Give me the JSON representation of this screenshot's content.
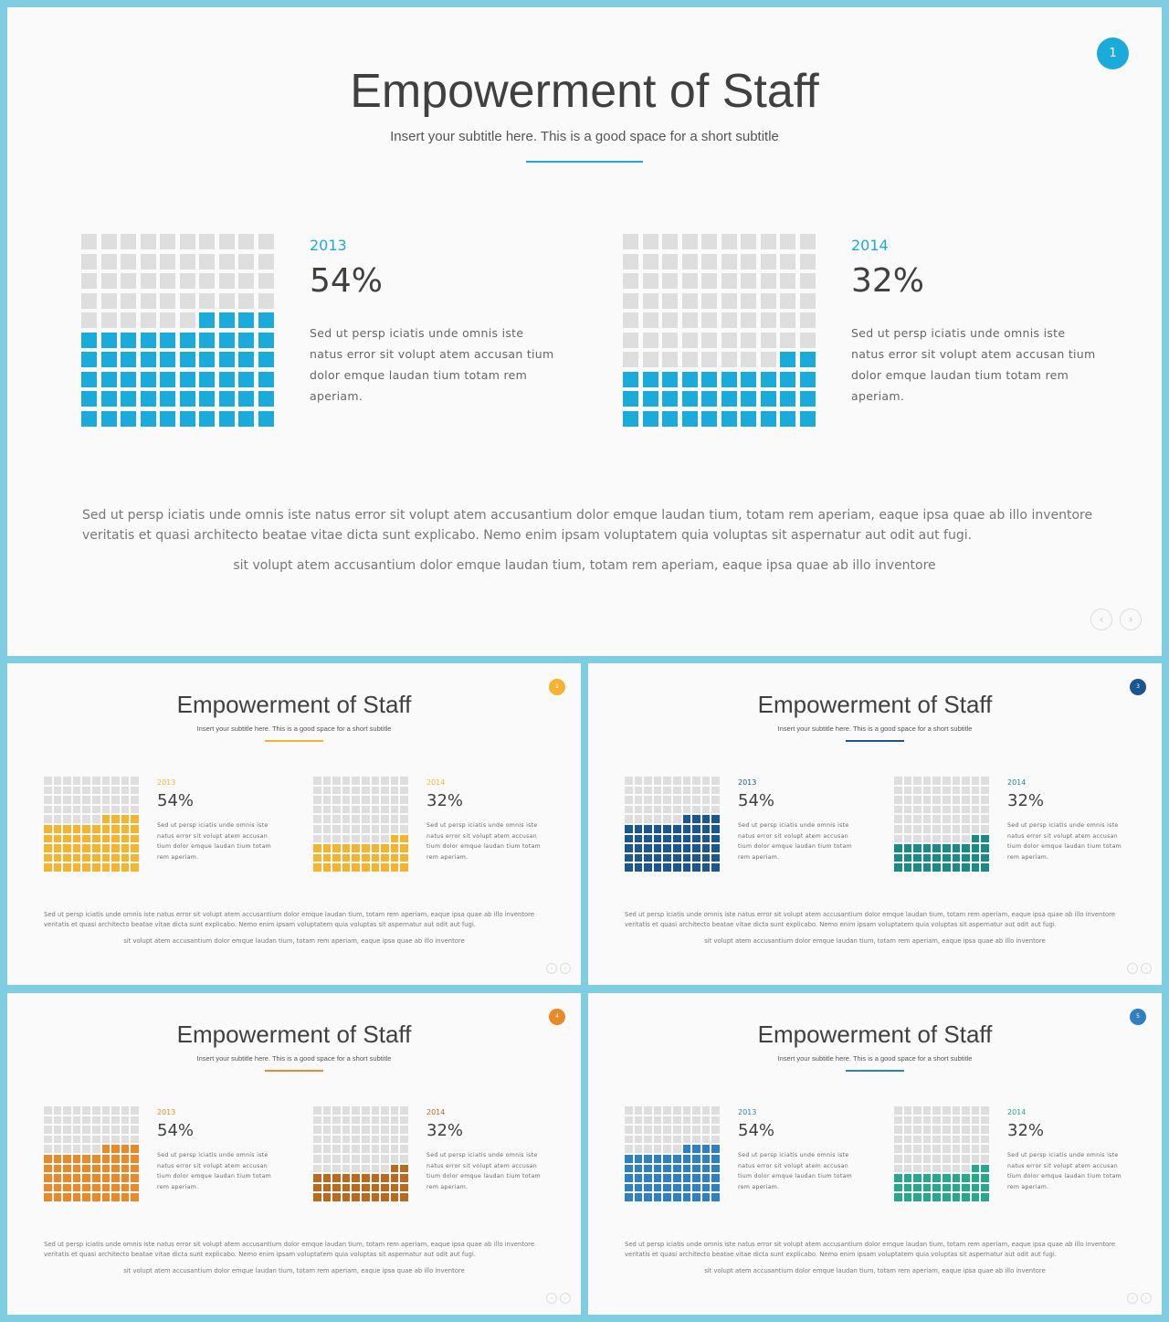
{
  "slides": [
    {
      "id": "main",
      "title": "Empowerment of Staff",
      "subtitle": "Insert your subtitle here. This is a good space for a short subtitle",
      "page_number": "1",
      "accent": "#1aabdb",
      "accent2": "#1aabdb",
      "left": {
        "year": "2013",
        "percent_label": "54%",
        "filled": 54,
        "description": "Sed ut persp iciatis unde omnis iste natus error sit volupt atem accusan tium dolor emque laudan tium totam rem aperiam."
      },
      "right": {
        "year": "2014",
        "percent_label": "32%",
        "filled": 32,
        "description": "Sed ut persp iciatis unde omnis iste natus error sit volupt atem accusan tium dolor emque laudan tium totam rem aperiam."
      },
      "body_text": "Sed ut persp iciatis unde omnis iste natus error sit volupt atem accusantium dolor emque laudan tium, totam rem aperiam, eaque ipsa quae ab illo inventore veritatis et quasi architecto beatae vitae dicta sunt explicabo. Nemo enim ipsam voluptatem quia voluptas sit aspernatur aut odit aut fugi.",
      "body_text_2": "sit volupt atem accusantium dolor emque laudan tium, totam rem aperiam, eaque ipsa quae ab illo inventore",
      "nav": {
        "prev": "‹",
        "next": "›"
      }
    },
    {
      "id": "tl",
      "title": "Empowerment of Staff",
      "subtitle": "Insert your subtitle here. This is a good space for a short subtitle",
      "page_number": "2",
      "accent": "#f3b530",
      "accent2": "#f3b530",
      "left": {
        "year": "2013",
        "percent_label": "54%",
        "filled": 54,
        "description": "Sed ut persp iciatis unde omnis iste natus error sit volupt atem accusan tium dolor emque laudan tium totam rem aperiam."
      },
      "right": {
        "year": "2014",
        "percent_label": "32%",
        "filled": 32,
        "description": "Sed ut persp iciatis unde omnis iste natus error sit volupt atem accusan tium dolor emque laudan tium totam rem aperiam."
      },
      "body_text": "Sed ut persp iciatis unde omnis iste natus error sit volupt atem accusantium dolor emque laudan tium, totam rem aperiam, eaque ipsa quae ab illo inventore veritatis et quasi architecto beatae vitae dicta sunt explicabo. Nemo enim ipsam voluptatem quia voluptas sit aspernatur aut odit aut fugi.",
      "body_text_2": "sit volupt atem accusantium dolor emque laudan tium, totam rem aperiam, eaque ipsa quae ab illo inventore",
      "nav": {
        "prev": "‹",
        "next": "›"
      }
    },
    {
      "id": "tr",
      "title": "Empowerment of Staff",
      "subtitle": "Insert your subtitle here. This is a good space for a short subtitle",
      "page_number": "3",
      "accent": "#1a5690",
      "accent2": "#1a8a85",
      "left": {
        "year": "2013",
        "percent_label": "54%",
        "filled": 54,
        "description": "Sed ut persp iciatis unde omnis iste natus error sit volupt atem accusan tium dolor emque laudan tium totam rem aperiam."
      },
      "right": {
        "year": "2014",
        "percent_label": "32%",
        "filled": 32,
        "description": "Sed ut persp iciatis unde omnis iste natus error sit volupt atem accusan tium dolor emque laudan tium totam rem aperiam."
      },
      "body_text": "Sed ut persp iciatis unde omnis iste natus error sit volupt atem accusantium dolor emque laudan tium, totam rem aperiam, eaque ipsa quae ab illo inventore veritatis et quasi architecto beatae vitae dicta sunt explicabo. Nemo enim ipsam voluptatem quia voluptas sit aspernatur aut odit aut fugi.",
      "body_text_2": "sit volupt atem accusantium dolor emque laudan tium, totam rem aperiam, eaque ipsa quae ab illo inventore",
      "nav": {
        "prev": "‹",
        "next": "›"
      }
    },
    {
      "id": "bl",
      "title": "Empowerment of Staff",
      "subtitle": "Insert your subtitle here. This is a good space for a short subtitle",
      "page_number": "4",
      "accent": "#e88a2a",
      "accent2": "#b86a1e",
      "left": {
        "year": "2013",
        "percent_label": "54%",
        "filled": 54,
        "description": "Sed ut persp iciatis unde omnis iste natus error sit volupt atem accusan tium dolor emque laudan tium totam rem aperiam."
      },
      "right": {
        "year": "2014",
        "percent_label": "32%",
        "filled": 32,
        "description": "Sed ut persp iciatis unde omnis iste natus error sit volupt atem accusan tium dolor emque laudan tium totam rem aperiam."
      },
      "body_text": "Sed ut persp iciatis unde omnis iste natus error sit volupt atem accusantium dolor emque laudan tium, totam rem aperiam, eaque ipsa quae ab illo inventore veritatis et quasi architecto beatae vitae dicta sunt explicabo. Nemo enim ipsam voluptatem quia voluptas sit aspernatur aut odit aut fugi.",
      "body_text_2": "sit volupt atem accusantium dolor emque laudan tium, totam rem aperiam, eaque ipsa quae ab illo inventore",
      "nav": {
        "prev": "‹",
        "next": "›"
      }
    },
    {
      "id": "br",
      "title": "Empowerment of Staff",
      "subtitle": "Insert your subtitle here. This is a good space for a short subtitle",
      "page_number": "5",
      "accent": "#2f80c0",
      "accent2": "#27a88c",
      "left": {
        "year": "2013",
        "percent_label": "54%",
        "filled": 54,
        "description": "Sed ut persp iciatis unde omnis iste natus error sit volupt atem accusan tium dolor emque laudan tium totam rem aperiam."
      },
      "right": {
        "year": "2014",
        "percent_label": "32%",
        "filled": 32,
        "description": "Sed ut persp iciatis unde omnis iste natus error sit volupt atem accusan tium dolor emque laudan tium totam rem aperiam."
      },
      "body_text": "Sed ut persp iciatis unde omnis iste natus error sit volupt atem accusantium dolor emque laudan tium, totam rem aperiam, eaque ipsa quae ab illo inventore veritatis et quasi architecto beatae vitae dicta sunt explicabo. Nemo enim ipsam voluptatem quia voluptas sit aspernatur aut odit aut fugi.",
      "body_text_2": "sit volupt atem accusantium dolor emque laudan tium, totam rem aperiam, eaque ipsa quae ab illo inventore",
      "nav": {
        "prev": "‹",
        "next": "›"
      }
    }
  ],
  "colors": {
    "background_frame": "#7ecde0",
    "slide_bg": "#fafafa",
    "empty_cell": "#dedede",
    "title": "#404040"
  }
}
